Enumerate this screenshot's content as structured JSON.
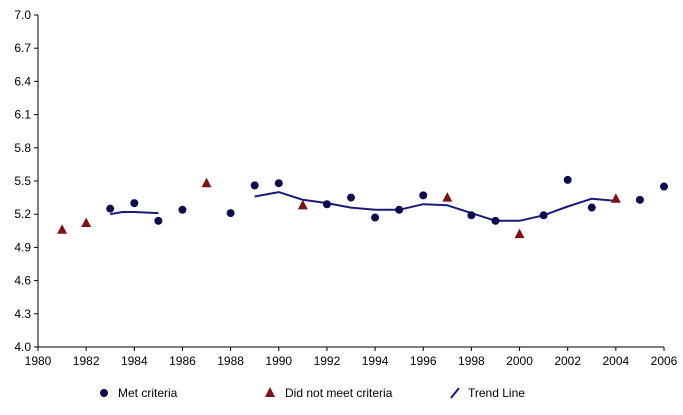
{
  "chart_data": {
    "type": "scatter",
    "x_range": [
      1980,
      2006
    ],
    "y_range": [
      4.0,
      7.0
    ],
    "x_ticks": [
      "1980",
      "1982",
      "1984",
      "1986",
      "1988",
      "1990",
      "1992",
      "1994",
      "1996",
      "1998",
      "2000",
      "2002",
      "2004",
      "2006"
    ],
    "y_ticks": [
      "4.0",
      "4.3",
      "4.6",
      "4.9",
      "5.2",
      "5.5",
      "5.8",
      "6.1",
      "6.4",
      "6.7",
      "7.0"
    ],
    "grid": false,
    "legend_position": "bottom",
    "series": [
      {
        "name": "Met criteria",
        "marker": "circle",
        "color": "#0d0d4d",
        "points": [
          {
            "x": 1983,
            "y": 5.25
          },
          {
            "x": 1984,
            "y": 5.3
          },
          {
            "x": 1985,
            "y": 5.14
          },
          {
            "x": 1986,
            "y": 5.24
          },
          {
            "x": 1988,
            "y": 5.21
          },
          {
            "x": 1989,
            "y": 5.46
          },
          {
            "x": 1990,
            "y": 5.48
          },
          {
            "x": 1992,
            "y": 5.29
          },
          {
            "x": 1993,
            "y": 5.35
          },
          {
            "x": 1994,
            "y": 5.17
          },
          {
            "x": 1995,
            "y": 5.24
          },
          {
            "x": 1996,
            "y": 5.37
          },
          {
            "x": 1998,
            "y": 5.19
          },
          {
            "x": 1999,
            "y": 5.14
          },
          {
            "x": 2001,
            "y": 5.19
          },
          {
            "x": 2002,
            "y": 5.51
          },
          {
            "x": 2003,
            "y": 5.26
          },
          {
            "x": 2005,
            "y": 5.33
          },
          {
            "x": 2006,
            "y": 5.45
          }
        ]
      },
      {
        "name": "Did not meet criteria",
        "marker": "triangle",
        "color": "#7a1414",
        "points": [
          {
            "x": 1981,
            "y": 5.06
          },
          {
            "x": 1982,
            "y": 5.12
          },
          {
            "x": 1987,
            "y": 5.48
          },
          {
            "x": 1991,
            "y": 5.28
          },
          {
            "x": 1997,
            "y": 5.35
          },
          {
            "x": 2000,
            "y": 5.02
          },
          {
            "x": 2004,
            "y": 5.34
          }
        ]
      },
      {
        "name": "Trend Line",
        "marker": "line",
        "color": "#1a1a7a",
        "segments": [
          [
            {
              "x": 1983,
              "y": 5.2
            },
            {
              "x": 1983.5,
              "y": 5.22
            },
            {
              "x": 1984,
              "y": 5.22
            },
            {
              "x": 1985,
              "y": 5.21
            }
          ],
          [
            {
              "x": 1989,
              "y": 5.36
            },
            {
              "x": 1990,
              "y": 5.4
            },
            {
              "x": 1991,
              "y": 5.33
            },
            {
              "x": 1992,
              "y": 5.3
            },
            {
              "x": 1993,
              "y": 5.26
            },
            {
              "x": 1994,
              "y": 5.24
            },
            {
              "x": 1995,
              "y": 5.24
            },
            {
              "x": 1996,
              "y": 5.29
            },
            {
              "x": 1997,
              "y": 5.28
            },
            {
              "x": 1998,
              "y": 5.21
            },
            {
              "x": 1999,
              "y": 5.14
            },
            {
              "x": 2000,
              "y": 5.14
            },
            {
              "x": 2001,
              "y": 5.19
            },
            {
              "x": 2002,
              "y": 5.27
            },
            {
              "x": 2003,
              "y": 5.34
            },
            {
              "x": 2004,
              "y": 5.32
            }
          ]
        ]
      }
    ],
    "legend": [
      {
        "label": "Met criteria",
        "symbol": "circle"
      },
      {
        "label": "Did not meet criteria",
        "symbol": "triangle"
      },
      {
        "label": "Trend Line",
        "symbol": "line"
      }
    ]
  }
}
